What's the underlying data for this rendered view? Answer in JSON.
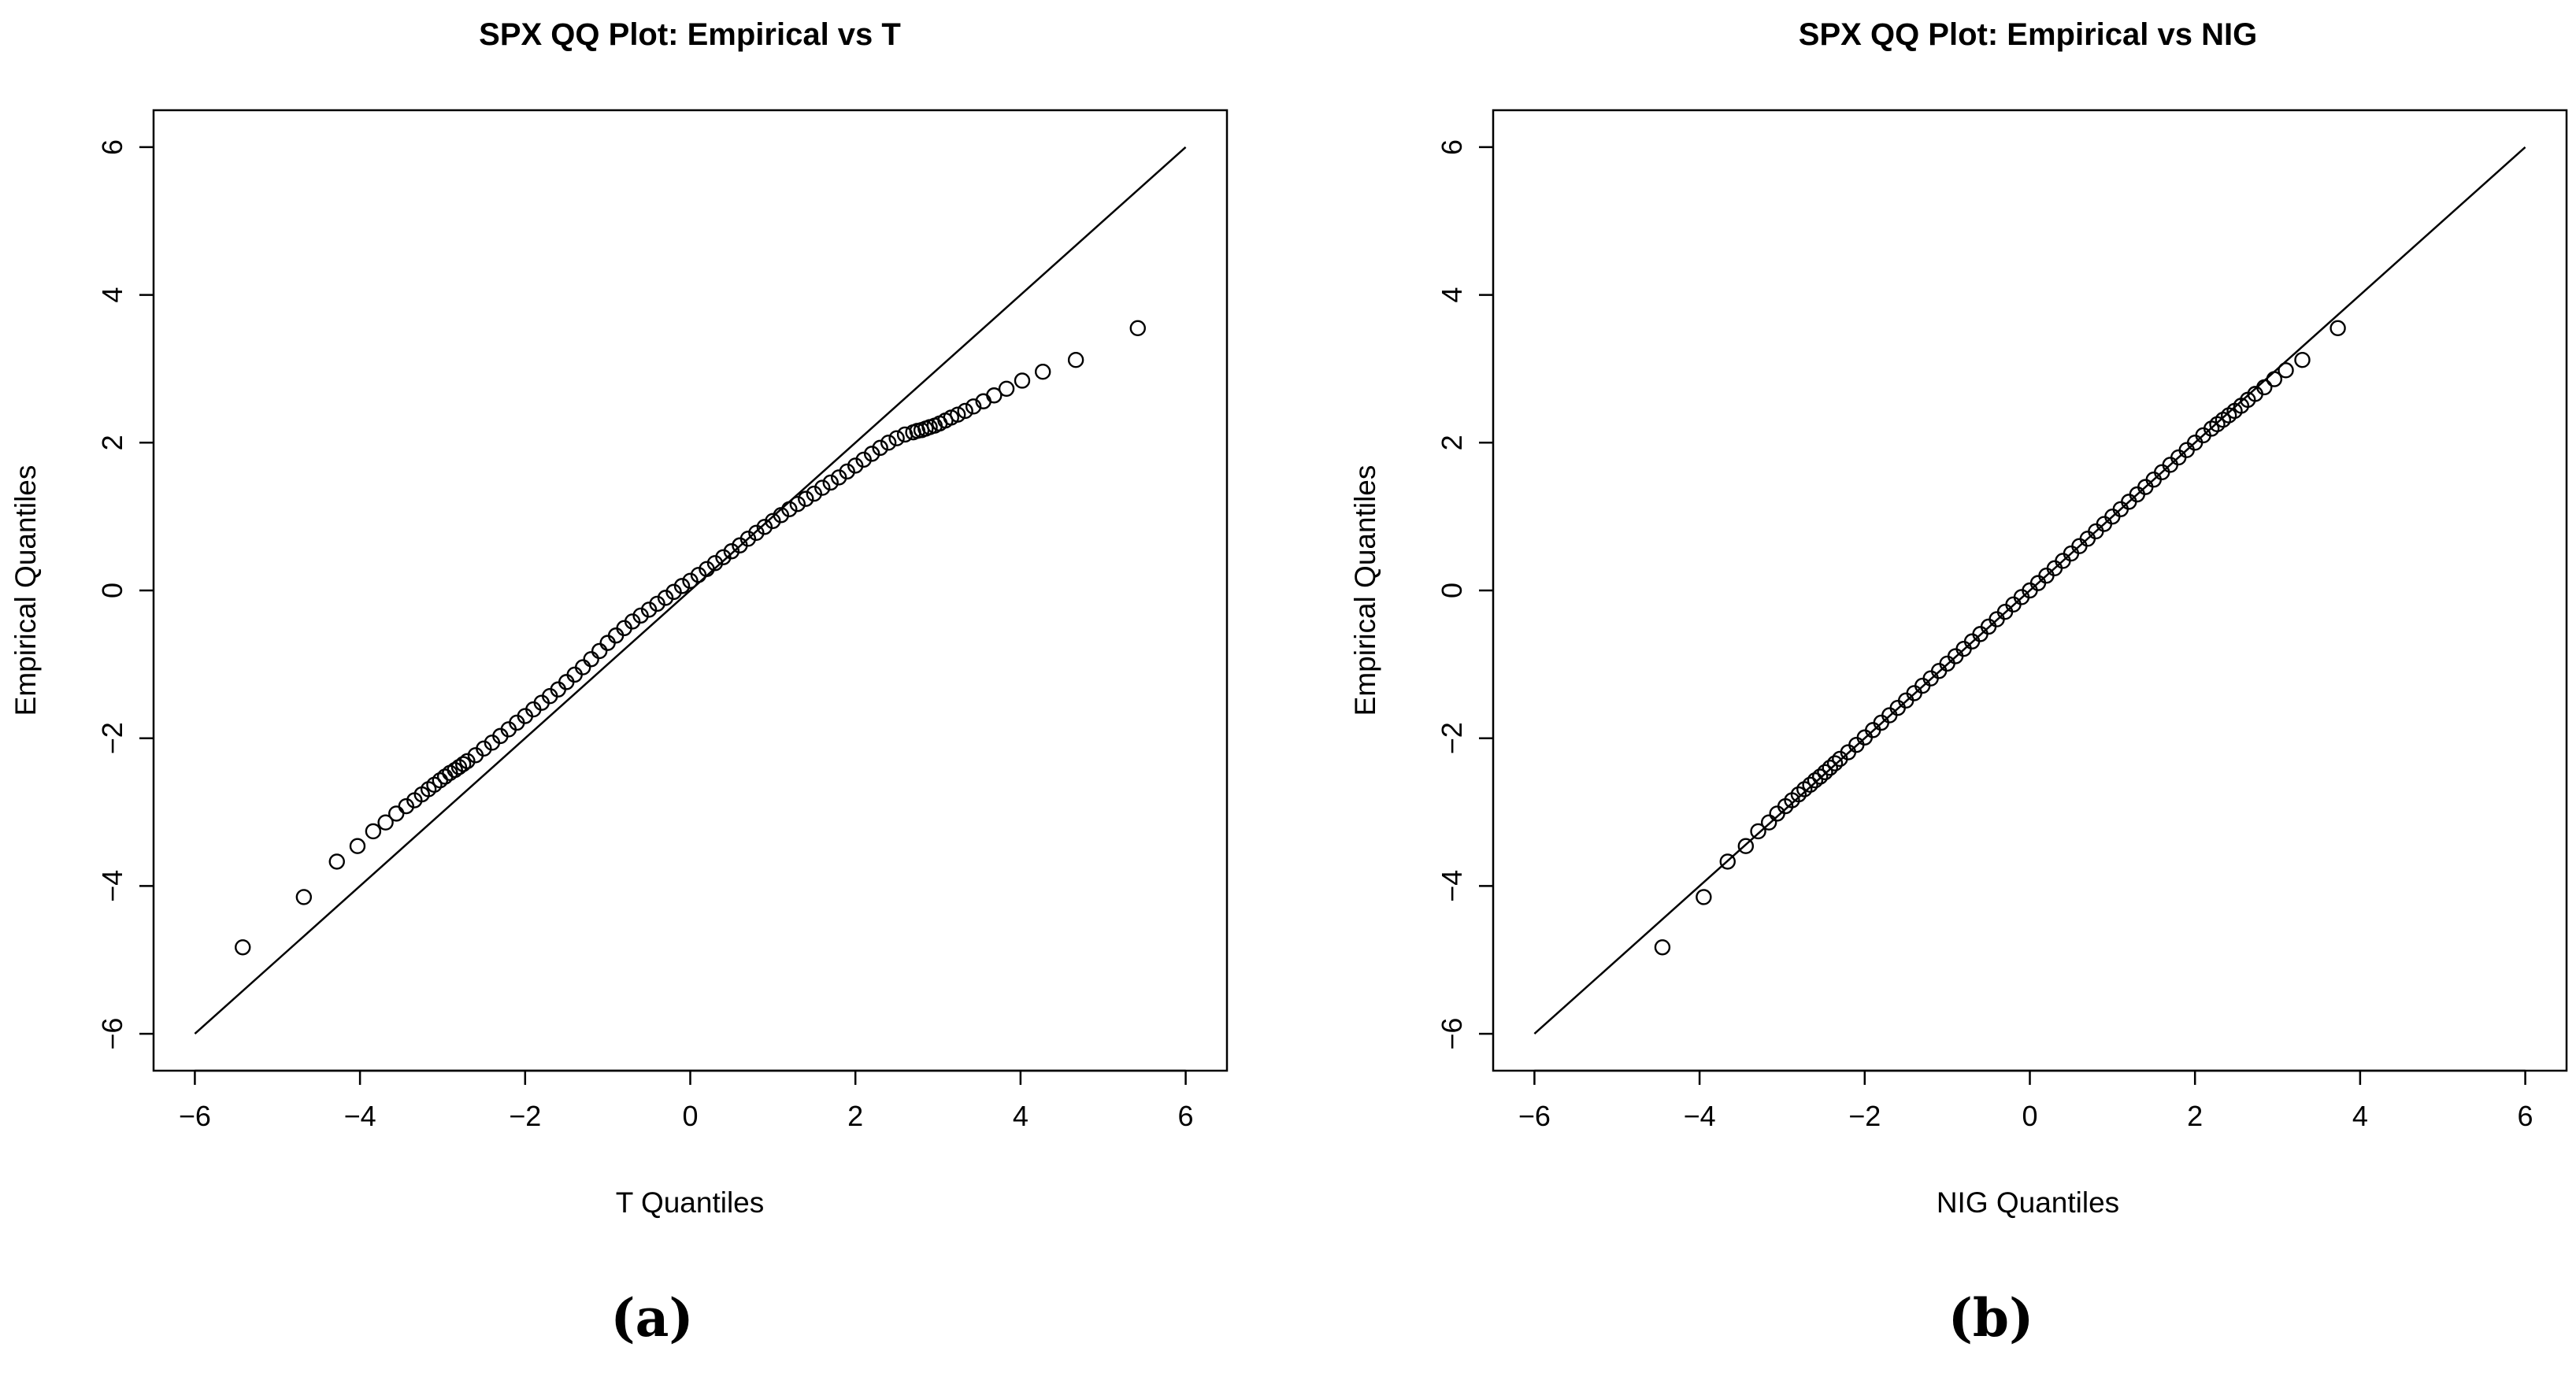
{
  "chart_data": [
    {
      "type": "scatter",
      "panel_label": "(a)",
      "title": "SPX QQ Plot: Empirical vs T",
      "xlabel": "T Quantiles",
      "ylabel": "Empirical Quantiles",
      "xlim": [
        -6.5,
        6.5
      ],
      "ylim": [
        -6.5,
        6.5
      ],
      "xticks": [
        -6,
        -4,
        -2,
        0,
        2,
        4,
        6
      ],
      "yticks": [
        -6,
        -4,
        -2,
        0,
        2,
        4,
        6
      ],
      "reference_line": {
        "x": [
          -6,
          6
        ],
        "y": [
          -6,
          6
        ]
      },
      "grid": false,
      "series": [
        {
          "marker": "open-circle",
          "x": [
            -5.42,
            -4.68,
            -4.28,
            -4.03,
            -3.84,
            -3.69,
            -3.56,
            -3.44,
            -3.34,
            -3.25,
            -3.17,
            -3.1,
            -3.03,
            -2.97,
            -2.91,
            -2.85,
            -2.8,
            -2.75,
            -2.7,
            -2.6,
            -2.5,
            -2.4,
            -2.3,
            -2.2,
            -2.1,
            -2.0,
            -1.9,
            -1.8,
            -1.7,
            -1.6,
            -1.5,
            -1.4,
            -1.3,
            -1.2,
            -1.1,
            -1.0,
            -0.9,
            -0.8,
            -0.7,
            -0.6,
            -0.5,
            -0.4,
            -0.3,
            -0.2,
            -0.1,
            0.0,
            0.1,
            0.2,
            0.3,
            0.4,
            0.5,
            0.6,
            0.7,
            0.8,
            0.9,
            1.0,
            1.1,
            1.2,
            1.3,
            1.4,
            1.5,
            1.6,
            1.7,
            1.8,
            1.9,
            2.0,
            2.1,
            2.2,
            2.3,
            2.4,
            2.5,
            2.6,
            2.7,
            2.75,
            2.8,
            2.85,
            2.9,
            2.96,
            3.02,
            3.09,
            3.16,
            3.24,
            3.33,
            3.43,
            3.55,
            3.68,
            3.83,
            4.02,
            4.27,
            4.67,
            5.42
          ],
          "y": [
            -4.83,
            -4.15,
            -3.67,
            -3.46,
            -3.26,
            -3.14,
            -3.02,
            -2.92,
            -2.84,
            -2.76,
            -2.69,
            -2.63,
            -2.57,
            -2.52,
            -2.47,
            -2.43,
            -2.39,
            -2.35,
            -2.31,
            -2.23,
            -2.14,
            -2.06,
            -1.97,
            -1.88,
            -1.79,
            -1.7,
            -1.61,
            -1.52,
            -1.43,
            -1.34,
            -1.24,
            -1.14,
            -1.04,
            -0.93,
            -0.82,
            -0.71,
            -0.61,
            -0.51,
            -0.42,
            -0.34,
            -0.26,
            -0.18,
            -0.1,
            -0.02,
            0.06,
            0.13,
            0.21,
            0.29,
            0.37,
            0.45,
            0.53,
            0.61,
            0.7,
            0.78,
            0.86,
            0.94,
            1.02,
            1.1,
            1.17,
            1.24,
            1.31,
            1.39,
            1.46,
            1.53,
            1.61,
            1.69,
            1.77,
            1.85,
            1.93,
            2.0,
            2.06,
            2.11,
            2.14,
            2.16,
            2.17,
            2.19,
            2.21,
            2.23,
            2.26,
            2.3,
            2.34,
            2.38,
            2.43,
            2.49,
            2.56,
            2.64,
            2.73,
            2.84,
            2.96,
            3.12,
            3.55
          ]
        }
      ]
    },
    {
      "type": "scatter",
      "panel_label": "(b)",
      "title": "SPX QQ Plot: Empirical vs NIG",
      "xlabel": "NIG Quantiles",
      "ylabel": "Empirical Quantiles",
      "xlim": [
        -6.5,
        6.5
      ],
      "ylim": [
        -6.5,
        6.5
      ],
      "xticks": [
        -6,
        -4,
        -2,
        0,
        2,
        4,
        6
      ],
      "yticks": [
        -6,
        -4,
        -2,
        0,
        2,
        4,
        6
      ],
      "reference_line": {
        "x": [
          -6,
          6
        ],
        "y": [
          -6,
          6
        ]
      },
      "grid": false,
      "series": [
        {
          "marker": "open-circle",
          "x": [
            -4.45,
            -3.95,
            -3.66,
            -3.44,
            -3.29,
            -3.16,
            -3.06,
            -2.96,
            -2.88,
            -2.8,
            -2.73,
            -2.66,
            -2.6,
            -2.54,
            -2.48,
            -2.42,
            -2.36,
            -2.3,
            -2.2,
            -2.1,
            -2.0,
            -1.9,
            -1.8,
            -1.7,
            -1.6,
            -1.5,
            -1.4,
            -1.3,
            -1.2,
            -1.1,
            -1.0,
            -0.9,
            -0.8,
            -0.7,
            -0.6,
            -0.5,
            -0.4,
            -0.3,
            -0.2,
            -0.1,
            0.0,
            0.1,
            0.2,
            0.3,
            0.4,
            0.5,
            0.6,
            0.7,
            0.8,
            0.9,
            1.0,
            1.1,
            1.2,
            1.3,
            1.4,
            1.5,
            1.6,
            1.7,
            1.8,
            1.9,
            2.0,
            2.1,
            2.2,
            2.27,
            2.34,
            2.41,
            2.48,
            2.56,
            2.64,
            2.73,
            2.84,
            2.96,
            3.1,
            3.3,
            3.73
          ],
          "y": [
            -4.83,
            -4.15,
            -3.67,
            -3.46,
            -3.26,
            -3.14,
            -3.02,
            -2.92,
            -2.84,
            -2.76,
            -2.69,
            -2.63,
            -2.57,
            -2.52,
            -2.46,
            -2.4,
            -2.34,
            -2.28,
            -2.19,
            -2.09,
            -1.99,
            -1.89,
            -1.79,
            -1.69,
            -1.59,
            -1.49,
            -1.39,
            -1.29,
            -1.19,
            -1.09,
            -0.99,
            -0.89,
            -0.79,
            -0.69,
            -0.59,
            -0.49,
            -0.39,
            -0.29,
            -0.19,
            -0.09,
            0.0,
            0.1,
            0.2,
            0.3,
            0.4,
            0.5,
            0.6,
            0.7,
            0.8,
            0.9,
            1.0,
            1.1,
            1.2,
            1.3,
            1.4,
            1.5,
            1.6,
            1.7,
            1.8,
            1.9,
            2.0,
            2.1,
            2.19,
            2.25,
            2.31,
            2.37,
            2.43,
            2.5,
            2.58,
            2.66,
            2.75,
            2.86,
            2.98,
            3.12,
            3.55
          ]
        }
      ]
    }
  ]
}
